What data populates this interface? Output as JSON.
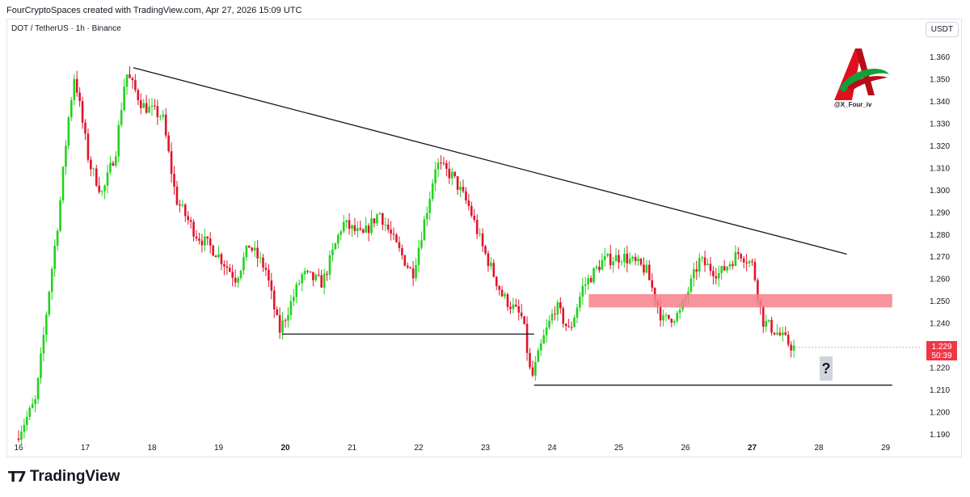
{
  "header": {
    "caption": "FourCryptoSpaces created with TradingView.com, Apr 27, 2026 15:09 UTC",
    "symbol": "DOT / TetherUS · 1h · Binance",
    "currency": "USDT"
  },
  "footer": {
    "brand": "TradingView",
    "logo_icon": "tradingview-logo-icon"
  },
  "watermark": {
    "handle": "@X_Four_iv",
    "icon": "stylized-a-logo-icon"
  },
  "price_badge": {
    "price": "1.229",
    "countdown": "50:39"
  },
  "annotation": {
    "question": "?"
  },
  "colors": {
    "up": "#22d21f",
    "down": "#e0142c",
    "zone": "#f77f8b",
    "badge": "#f23645"
  },
  "chart_data": {
    "type": "candlestick",
    "title": "",
    "x_ticks": [
      "16",
      "17",
      "18",
      "19",
      "20",
      "21",
      "22",
      "23",
      "24",
      "25",
      "26",
      "27",
      "28",
      "29"
    ],
    "x_ticks_bold": [
      "20",
      "27"
    ],
    "y_ticks": [
      "1.360",
      "1.350",
      "1.340",
      "1.330",
      "1.320",
      "1.310",
      "1.300",
      "1.290",
      "1.280",
      "1.270",
      "1.260",
      "1.250",
      "1.240",
      "1.230",
      "1.220",
      "1.210",
      "1.200",
      "1.190"
    ],
    "ylim": [
      1.186,
      1.364
    ],
    "xlim_days": [
      16,
      29.99
    ],
    "price_path": [
      [
        16.0,
        1.188
      ],
      [
        16.3,
        1.205
      ],
      [
        16.5,
        1.255
      ],
      [
        16.65,
        1.29
      ],
      [
        16.78,
        1.33
      ],
      [
        16.88,
        1.352
      ],
      [
        17.1,
        1.312
      ],
      [
        17.3,
        1.298
      ],
      [
        17.5,
        1.318
      ],
      [
        17.65,
        1.353
      ],
      [
        17.9,
        1.338
      ],
      [
        18.2,
        1.333
      ],
      [
        18.4,
        1.296
      ],
      [
        18.7,
        1.28
      ],
      [
        19.0,
        1.272
      ],
      [
        19.3,
        1.26
      ],
      [
        19.5,
        1.275
      ],
      [
        19.75,
        1.264
      ],
      [
        19.95,
        1.236
      ],
      [
        20.3,
        1.262
      ],
      [
        20.6,
        1.258
      ],
      [
        20.9,
        1.285
      ],
      [
        21.2,
        1.279
      ],
      [
        21.45,
        1.29
      ],
      [
        21.7,
        1.275
      ],
      [
        21.95,
        1.262
      ],
      [
        22.2,
        1.296
      ],
      [
        22.3,
        1.312
      ],
      [
        22.55,
        1.306
      ],
      [
        22.8,
        1.292
      ],
      [
        23.0,
        1.274
      ],
      [
        23.3,
        1.252
      ],
      [
        23.6,
        1.242
      ],
      [
        23.73,
        1.214
      ],
      [
        23.9,
        1.232
      ],
      [
        24.1,
        1.248
      ],
      [
        24.3,
        1.236
      ],
      [
        24.5,
        1.256
      ],
      [
        24.8,
        1.268
      ],
      [
        25.1,
        1.27
      ],
      [
        25.45,
        1.264
      ],
      [
        25.7,
        1.241
      ],
      [
        25.95,
        1.244
      ],
      [
        26.25,
        1.268
      ],
      [
        26.55,
        1.262
      ],
      [
        26.85,
        1.272
      ],
      [
        27.05,
        1.266
      ],
      [
        27.2,
        1.241
      ],
      [
        27.4,
        1.236
      ],
      [
        27.65,
        1.229
      ]
    ],
    "trendlines": [
      {
        "name": "descending-resistance",
        "from": [
          17.72,
          1.355
        ],
        "to": [
          28.42,
          1.271
        ]
      },
      {
        "name": "support-20",
        "from": [
          19.95,
          1.235
        ],
        "to": [
          23.73,
          1.235
        ]
      },
      {
        "name": "support-24",
        "from": [
          23.73,
          1.212
        ],
        "to": [
          29.1,
          1.212
        ]
      }
    ],
    "zone": {
      "from_x": 24.55,
      "to_x": 29.1,
      "y_low": 1.247,
      "y_high": 1.253
    },
    "last_price": 1.229
  }
}
